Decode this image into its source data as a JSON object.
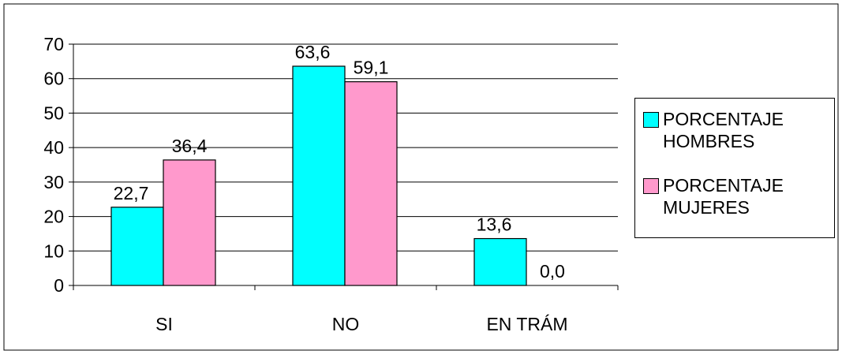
{
  "chart_data": {
    "type": "bar",
    "categories": [
      "SI",
      "NO",
      "EN TRÁM"
    ],
    "series": [
      {
        "name": "PORCENTAJE\nHOMBRES",
        "values": [
          22.7,
          63.6,
          13.6
        ],
        "labels": [
          "22,7",
          "63,6",
          "13,6"
        ],
        "color": "#00ffff"
      },
      {
        "name": "PORCENTAJE\nMUJERES",
        "values": [
          36.4,
          59.1,
          0.0
        ],
        "labels": [
          "36,4",
          "59,1",
          "0,0"
        ],
        "color": "#ff99cc"
      }
    ],
    "ylim": [
      0,
      70
    ],
    "yticks": [
      "0",
      "10",
      "20",
      "30",
      "40",
      "50",
      "60",
      "70"
    ],
    "grid": true,
    "legend_position": "right",
    "title": "",
    "xlabel": "",
    "ylabel": ""
  }
}
